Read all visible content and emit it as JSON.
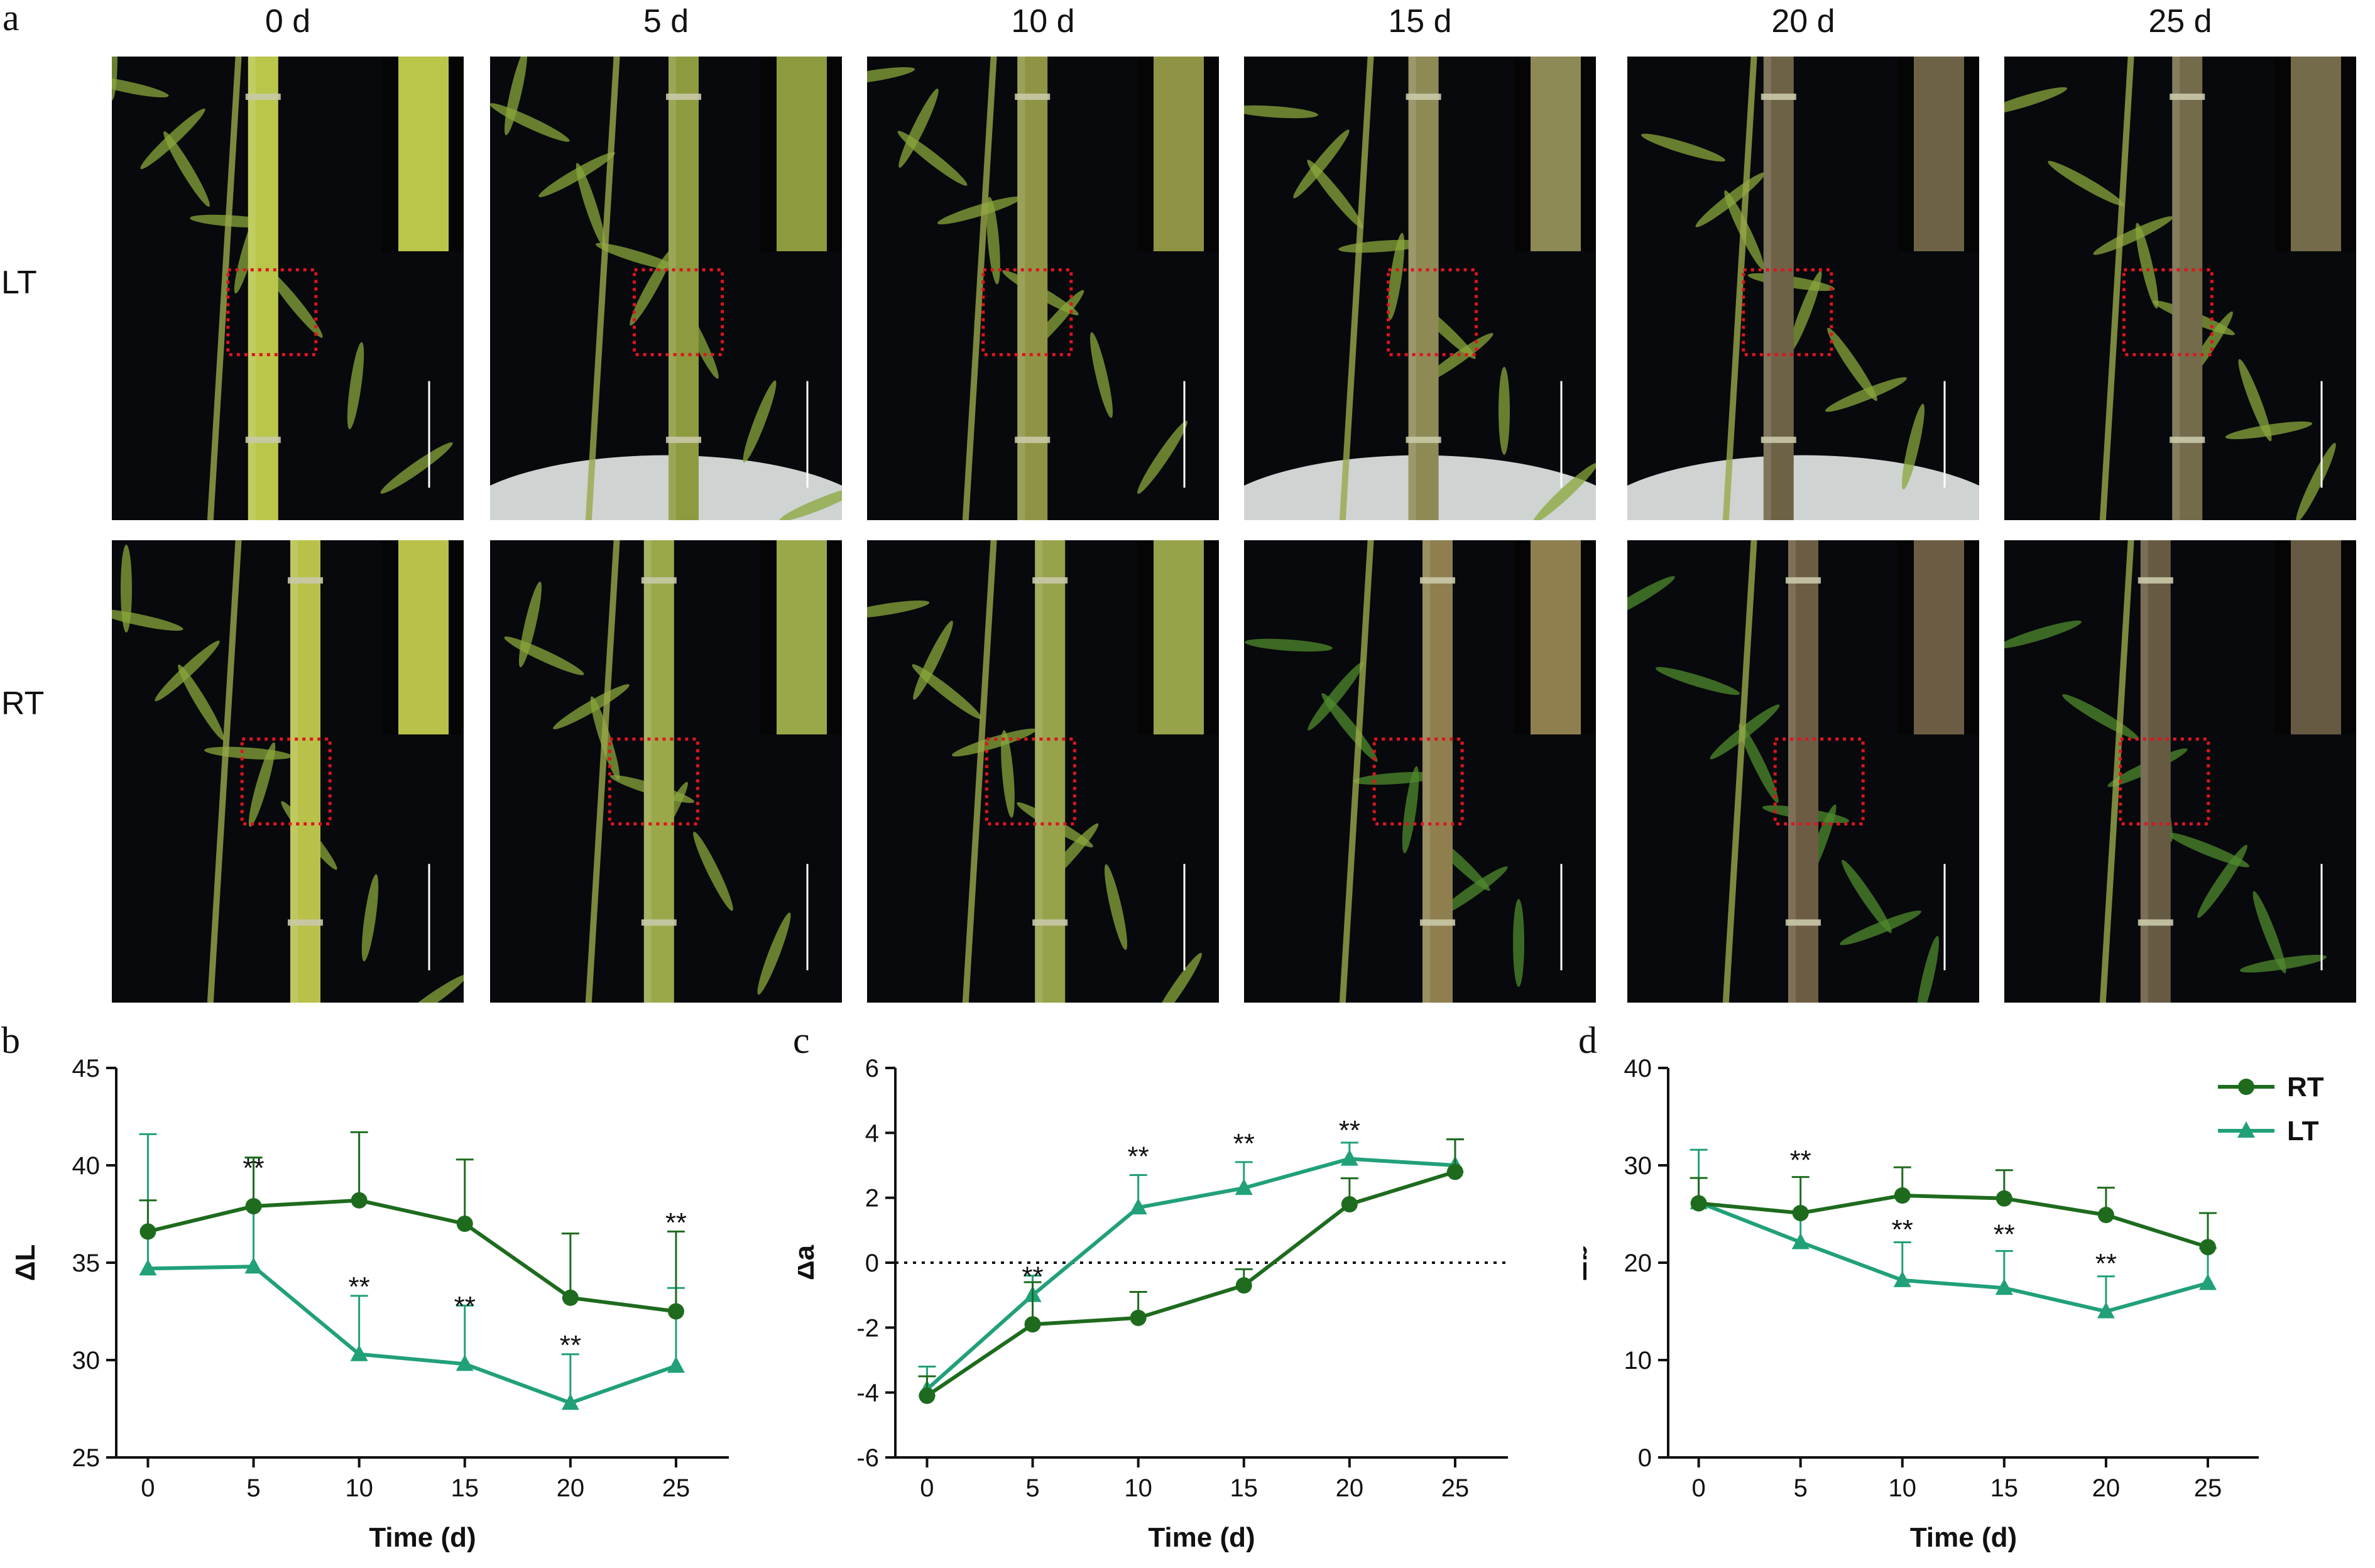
{
  "panel_labels": {
    "a": "a",
    "b": "b",
    "c": "c",
    "d": "d"
  },
  "timepoints": [
    "0 d",
    "5 d",
    "10 d",
    "15 d",
    "20 d",
    "25 d"
  ],
  "rows": [
    "LT",
    "RT"
  ],
  "colors": {
    "RT": "#1e6b1e",
    "LT": "#21a07a",
    "background": "#ffffff",
    "photo_bg": "#07090c",
    "roi_box": "#e0141e",
    "scale_bar": "#ffffff"
  },
  "significance": "**",
  "legend": {
    "placement": "top-right",
    "items": [
      "RT",
      "LT"
    ]
  },
  "chart_data": [
    {
      "type": "line",
      "panel": "b",
      "xlabel": "Time (d)",
      "ylabel": "ΔL",
      "x": [
        0,
        5,
        10,
        15,
        20,
        25
      ],
      "ylim": [
        25,
        45
      ],
      "yticks": [
        25,
        30,
        35,
        40,
        45
      ],
      "xticks": [
        0,
        5,
        10,
        15,
        20,
        25
      ],
      "zero_line": false,
      "series": [
        {
          "name": "RT",
          "marker": "circle",
          "values": [
            36.6,
            37.9,
            38.2,
            37.0,
            33.2,
            32.5
          ],
          "errors": [
            1.6,
            2.5,
            3.5,
            3.3,
            3.3,
            4.1
          ]
        },
        {
          "name": "LT",
          "marker": "triangle",
          "values": [
            34.7,
            34.8,
            30.3,
            29.8,
            27.8,
            29.7
          ],
          "errors": [
            6.9,
            5.6,
            3.0,
            3.0,
            2.5,
            4.0
          ]
        }
      ],
      "stars": [
        {
          "x": 5,
          "y": 39.9
        },
        {
          "x": 10,
          "y": 33.8
        },
        {
          "x": 15,
          "y": 32.8
        },
        {
          "x": 20,
          "y": 30.8
        },
        {
          "x": 25,
          "y": 37.1
        }
      ]
    },
    {
      "type": "line",
      "panel": "c",
      "xlabel": "Time (d)",
      "ylabel": "Δa",
      "x": [
        0,
        5,
        10,
        15,
        20,
        25
      ],
      "ylim": [
        -6,
        6
      ],
      "yticks": [
        -6,
        -4,
        -2,
        0,
        2,
        4,
        6
      ],
      "xticks": [
        0,
        5,
        10,
        15,
        20,
        25
      ],
      "zero_line": true,
      "series": [
        {
          "name": "RT",
          "marker": "circle",
          "values": [
            -4.1,
            -1.9,
            -1.7,
            -0.7,
            1.8,
            2.8
          ],
          "errors": [
            0.6,
            1.3,
            0.8,
            0.5,
            0.8,
            1.0
          ]
        },
        {
          "name": "LT",
          "marker": "triangle",
          "values": [
            -3.9,
            -1.0,
            1.7,
            2.3,
            3.2,
            3.0
          ],
          "errors": [
            0.7,
            0.6,
            1.0,
            0.8,
            0.5,
            0.8
          ]
        }
      ],
      "stars": [
        {
          "x": 5,
          "y": -0.4
        },
        {
          "x": 10,
          "y": 3.3
        },
        {
          "x": 15,
          "y": 3.7
        },
        {
          "x": 20,
          "y": 4.1
        }
      ]
    },
    {
      "type": "line",
      "panel": "d",
      "xlabel": "Time (d)",
      "ylabel": "Δb",
      "x": [
        0,
        5,
        10,
        15,
        20,
        25
      ],
      "ylim": [
        0,
        40
      ],
      "yticks": [
        0,
        10,
        20,
        30,
        40
      ],
      "xticks": [
        0,
        5,
        10,
        15,
        20,
        25
      ],
      "zero_line": false,
      "series": [
        {
          "name": "RT",
          "marker": "circle",
          "values": [
            26.1,
            25.1,
            26.9,
            26.6,
            24.9,
            21.6
          ],
          "errors": [
            2.6,
            3.7,
            2.9,
            2.9,
            2.8,
            3.5
          ]
        },
        {
          "name": "LT",
          "marker": "triangle",
          "values": [
            26.2,
            22.1,
            18.2,
            17.4,
            15.0,
            17.9
          ],
          "errors": [
            5.4,
            3.2,
            3.9,
            3.8,
            3.6,
            3.6
          ]
        }
      ],
      "stars": [
        {
          "x": 5,
          "y": 30.6
        },
        {
          "x": 10,
          "y": 23.5
        },
        {
          "x": 15,
          "y": 23.0
        },
        {
          "x": 20,
          "y": 20.0
        }
      ]
    }
  ]
}
